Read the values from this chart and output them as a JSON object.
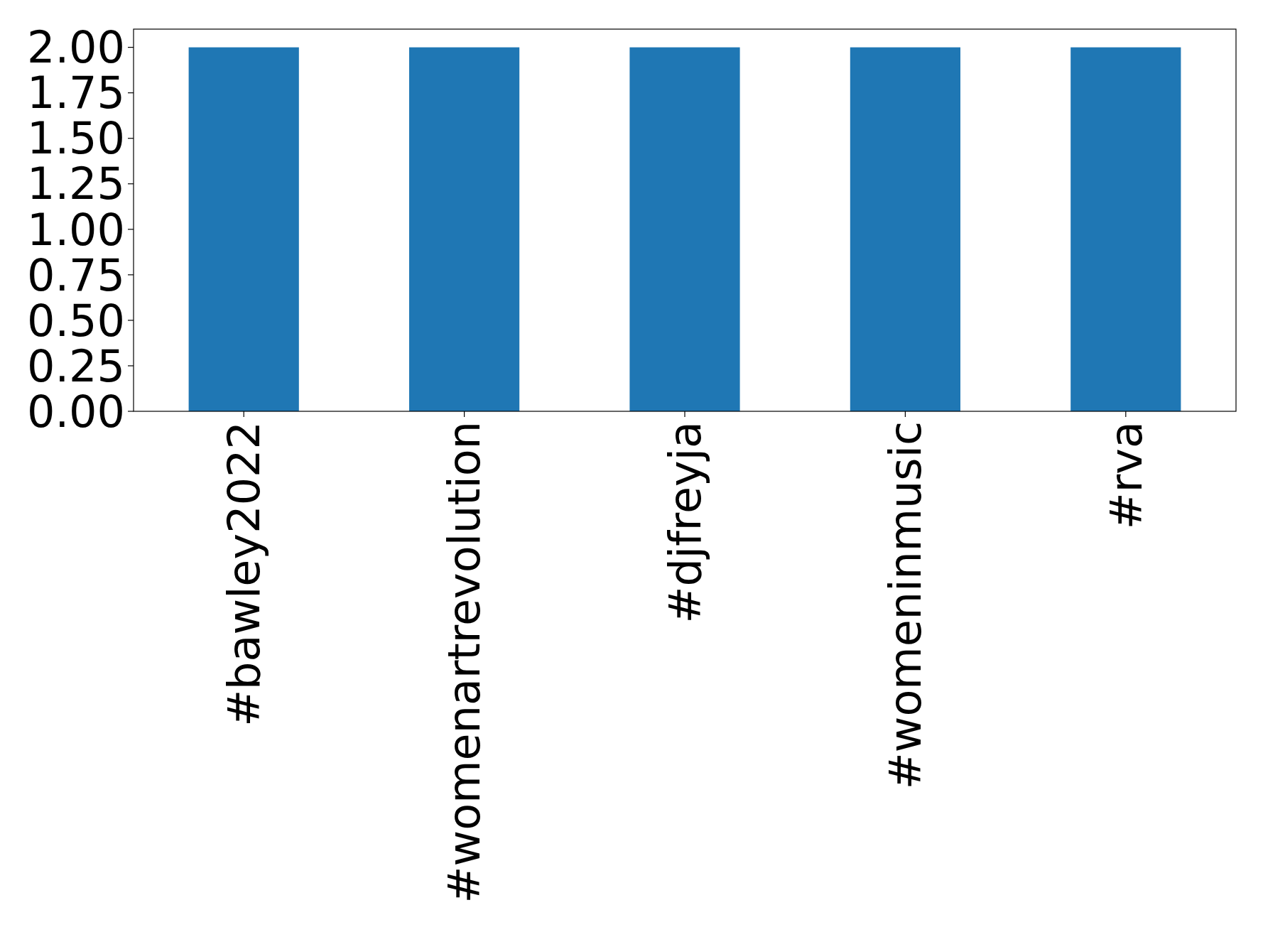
{
  "chart_data": {
    "type": "bar",
    "categories": [
      "#bawley2022",
      "#womenartrevolution",
      "#djfreyja",
      "#womeninmusic",
      "#rva"
    ],
    "values": [
      2,
      2,
      2,
      2,
      2
    ],
    "color": "#1f77b4",
    "ylim": [
      0,
      2.1
    ],
    "yticks": [
      {
        "value": 0,
        "label": "0.00"
      },
      {
        "value": 0.25,
        "label": "0.25"
      },
      {
        "value": 0.5,
        "label": "0.50"
      },
      {
        "value": 0.75,
        "label": "0.75"
      },
      {
        "value": 1,
        "label": "1.00"
      },
      {
        "value": 1.25,
        "label": "1.25"
      },
      {
        "value": 1.5,
        "label": "1.50"
      },
      {
        "value": 1.75,
        "label": "1.75"
      },
      {
        "value": 2,
        "label": "2.00"
      }
    ]
  }
}
